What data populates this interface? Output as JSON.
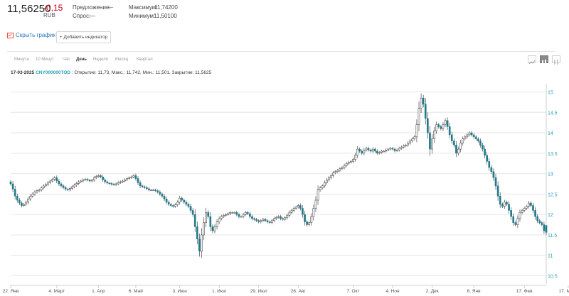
{
  "header": {
    "price": "11,56250",
    "change": "-0,15",
    "currency": "RUB",
    "offer_label": "Предложение:",
    "offer_value": "—",
    "bid_label": "Спрос:",
    "bid_value": "—",
    "max_label": "Максимум:",
    "max_value": "11,74200",
    "min_label": "Минимум:",
    "min_value": "11,50100"
  },
  "controls": {
    "hide_chart": "Скрыть график",
    "add_indicator": "Добавить индикатор",
    "add_icon": "+"
  },
  "tabs": [
    {
      "label": "Минута"
    },
    {
      "label": "10 Минут"
    },
    {
      "label": "Час"
    },
    {
      "label": "День",
      "active": true
    },
    {
      "label": "Неделя"
    },
    {
      "label": "Месяц"
    },
    {
      "label": "Квартал"
    }
  ],
  "view_buttons": [
    {
      "icon": "line-chart-icon"
    },
    {
      "icon": "candlestick-chart-icon",
      "active": true
    },
    {
      "icon": "ohlc-bars-icon"
    }
  ],
  "info": {
    "date": "17-03-2025",
    "ticker": "CNY000000TOD",
    "details": " : Открытие: 11,73, Макс.: 11,742, Мин.: 11,501, Закрытие: 11,5625"
  },
  "colors": {
    "up": "#ffffff",
    "down": "#1f7a8c",
    "wick": "#333333",
    "grid": "#e6e6e6",
    "axis_text": "#2a9fb8",
    "negative": "#d0021b"
  },
  "chart_data": {
    "type": "candlestick",
    "y_axis": {
      "ticks": [
        "10.5",
        "11",
        "11.5",
        "12",
        "12.5",
        "13",
        "13.5",
        "14",
        "14.5",
        "15"
      ],
      "ylim": [
        10.3,
        15.2
      ]
    },
    "x_axis": {
      "labels": [
        "22. Янв",
        "4. Март",
        "1. Апр",
        "6. Май",
        "3. Июн",
        "1. Июл",
        "29. Июл",
        "26. Авг",
        "7. Окт",
        "4. Ноя",
        "2. Дек",
        "6. Янв",
        "17. Фев",
        "17. Март"
      ],
      "label_index": [
        0,
        21,
        40,
        57,
        77,
        95,
        113,
        131,
        156,
        174,
        192,
        211,
        234,
        254
      ]
    },
    "grid": true,
    "closes": [
      12.75,
      12.62,
      12.45,
      12.35,
      12.28,
      12.22,
      12.25,
      12.3,
      12.38,
      12.45,
      12.5,
      12.55,
      12.58,
      12.6,
      12.65,
      12.7,
      12.74,
      12.78,
      12.82,
      12.86,
      12.9,
      12.82,
      12.75,
      12.7,
      12.66,
      12.62,
      12.6,
      12.64,
      12.68,
      12.72,
      12.76,
      12.8,
      12.82,
      12.85,
      12.86,
      12.84,
      12.82,
      12.84,
      12.9,
      12.93,
      12.95,
      12.92,
      12.85,
      12.8,
      12.77,
      12.76,
      12.74,
      12.73,
      12.75,
      12.78,
      12.8,
      12.82,
      12.85,
      12.88,
      12.9,
      12.92,
      12.95,
      12.88,
      12.78,
      12.7,
      12.68,
      12.66,
      12.63,
      12.6,
      12.6,
      12.6,
      12.58,
      12.55,
      12.5,
      12.45,
      12.38,
      12.3,
      12.25,
      12.22,
      12.2,
      12.24,
      12.3,
      12.4,
      12.35,
      12.3,
      12.25,
      12.2,
      12.1,
      12.0,
      11.7,
      11.4,
      11.1,
      11.5,
      11.8,
      12.05,
      11.95,
      11.7,
      11.6,
      11.7,
      11.82,
      11.9,
      11.95,
      11.98,
      12.0,
      12.02,
      12.05,
      12.05,
      12.05,
      12.0,
      11.95,
      11.95,
      12.0,
      12.05,
      12.02,
      11.95,
      11.9,
      11.88,
      11.85,
      11.82,
      11.85,
      11.88,
      11.85,
      11.82,
      11.8,
      11.85,
      11.9,
      11.93,
      11.95,
      11.9,
      11.88,
      11.92,
      11.98,
      12.05,
      12.1,
      12.15,
      12.18,
      12.22,
      12.15,
      12.0,
      11.82,
      11.75,
      11.8,
      11.95,
      12.15,
      12.35,
      12.6,
      12.65,
      12.7,
      12.78,
      12.85,
      12.9,
      12.95,
      13.02,
      13.05,
      13.08,
      13.12,
      13.15,
      13.2,
      13.25,
      13.28,
      13.3,
      13.35,
      13.45,
      13.6,
      13.55,
      13.5,
      13.58,
      13.62,
      13.58,
      13.55,
      13.6,
      13.55,
      13.5,
      13.52,
      13.55,
      13.55,
      13.58,
      13.6,
      13.62,
      13.6,
      13.56,
      13.58,
      13.62,
      13.65,
      13.68,
      13.7,
      13.75,
      13.8,
      13.85,
      13.9,
      14.2,
      14.6,
      14.85,
      14.7,
      14.35,
      14.0,
      13.6,
      13.85,
      14.05,
      14.2,
      14.15,
      14.1,
      14.2,
      14.3,
      14.15,
      13.95,
      13.8,
      13.7,
      13.5,
      13.6,
      13.75,
      13.85,
      13.9,
      13.95,
      14.0,
      13.95,
      13.9,
      13.85,
      13.8,
      13.7,
      13.6,
      13.45,
      13.3,
      13.15,
      13.05,
      12.9,
      12.7,
      12.45,
      12.25,
      12.2,
      12.3,
      12.25,
      12.1,
      11.95,
      11.8,
      11.75,
      11.9,
      12.05,
      12.1,
      12.15,
      12.2,
      12.28,
      12.22,
      12.1,
      11.95,
      11.85,
      11.8,
      11.75,
      11.6,
      11.56
    ],
    "last_candle": {
      "date": "17-03-2025",
      "open": 11.73,
      "high": 11.742,
      "low": 11.501,
      "close": 11.5625
    }
  }
}
